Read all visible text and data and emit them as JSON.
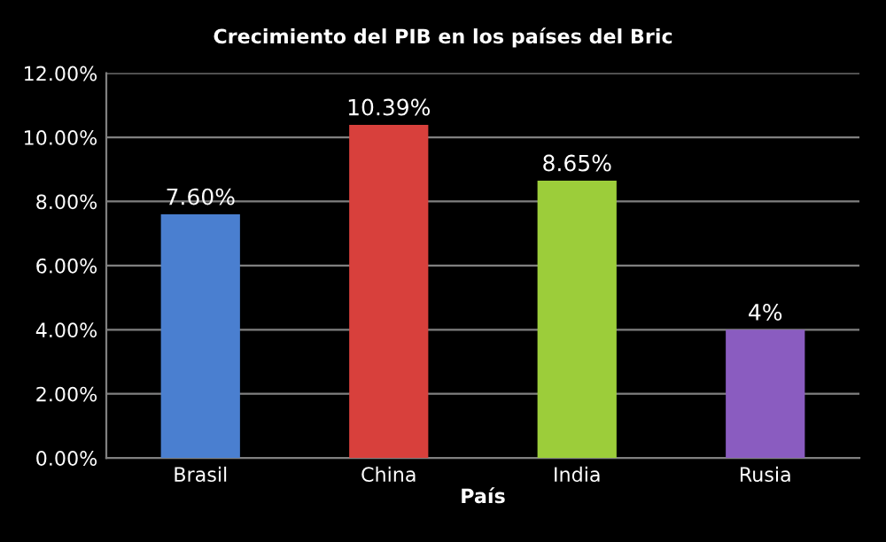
{
  "chart_data": {
    "type": "bar",
    "title": "Crecimiento del PIB en los países del Bric",
    "xlabel": "País",
    "categories": [
      "Brasil",
      "China",
      "India",
      "Rusia"
    ],
    "values": [
      7.6,
      10.39,
      8.65,
      4
    ],
    "colors": [
      "#4a7fd0",
      "#d8403c",
      "#9ccd3a",
      "#8a5cc0"
    ],
    "value_labels": [
      "7.60%",
      "10.39%",
      "8.65%",
      "4%"
    ],
    "ylim": [
      0,
      12
    ],
    "yticks": [
      {
        "value": 0,
        "label": "0.00%"
      },
      {
        "value": 2,
        "label": "2.00%"
      },
      {
        "value": 4,
        "label": "4.00%"
      },
      {
        "value": 6,
        "label": "6.00%"
      },
      {
        "value": 8,
        "label": "8.00%"
      },
      {
        "value": 10,
        "label": "10.00%"
      },
      {
        "value": 12,
        "label": "12.00%"
      }
    ],
    "grid": "y"
  }
}
